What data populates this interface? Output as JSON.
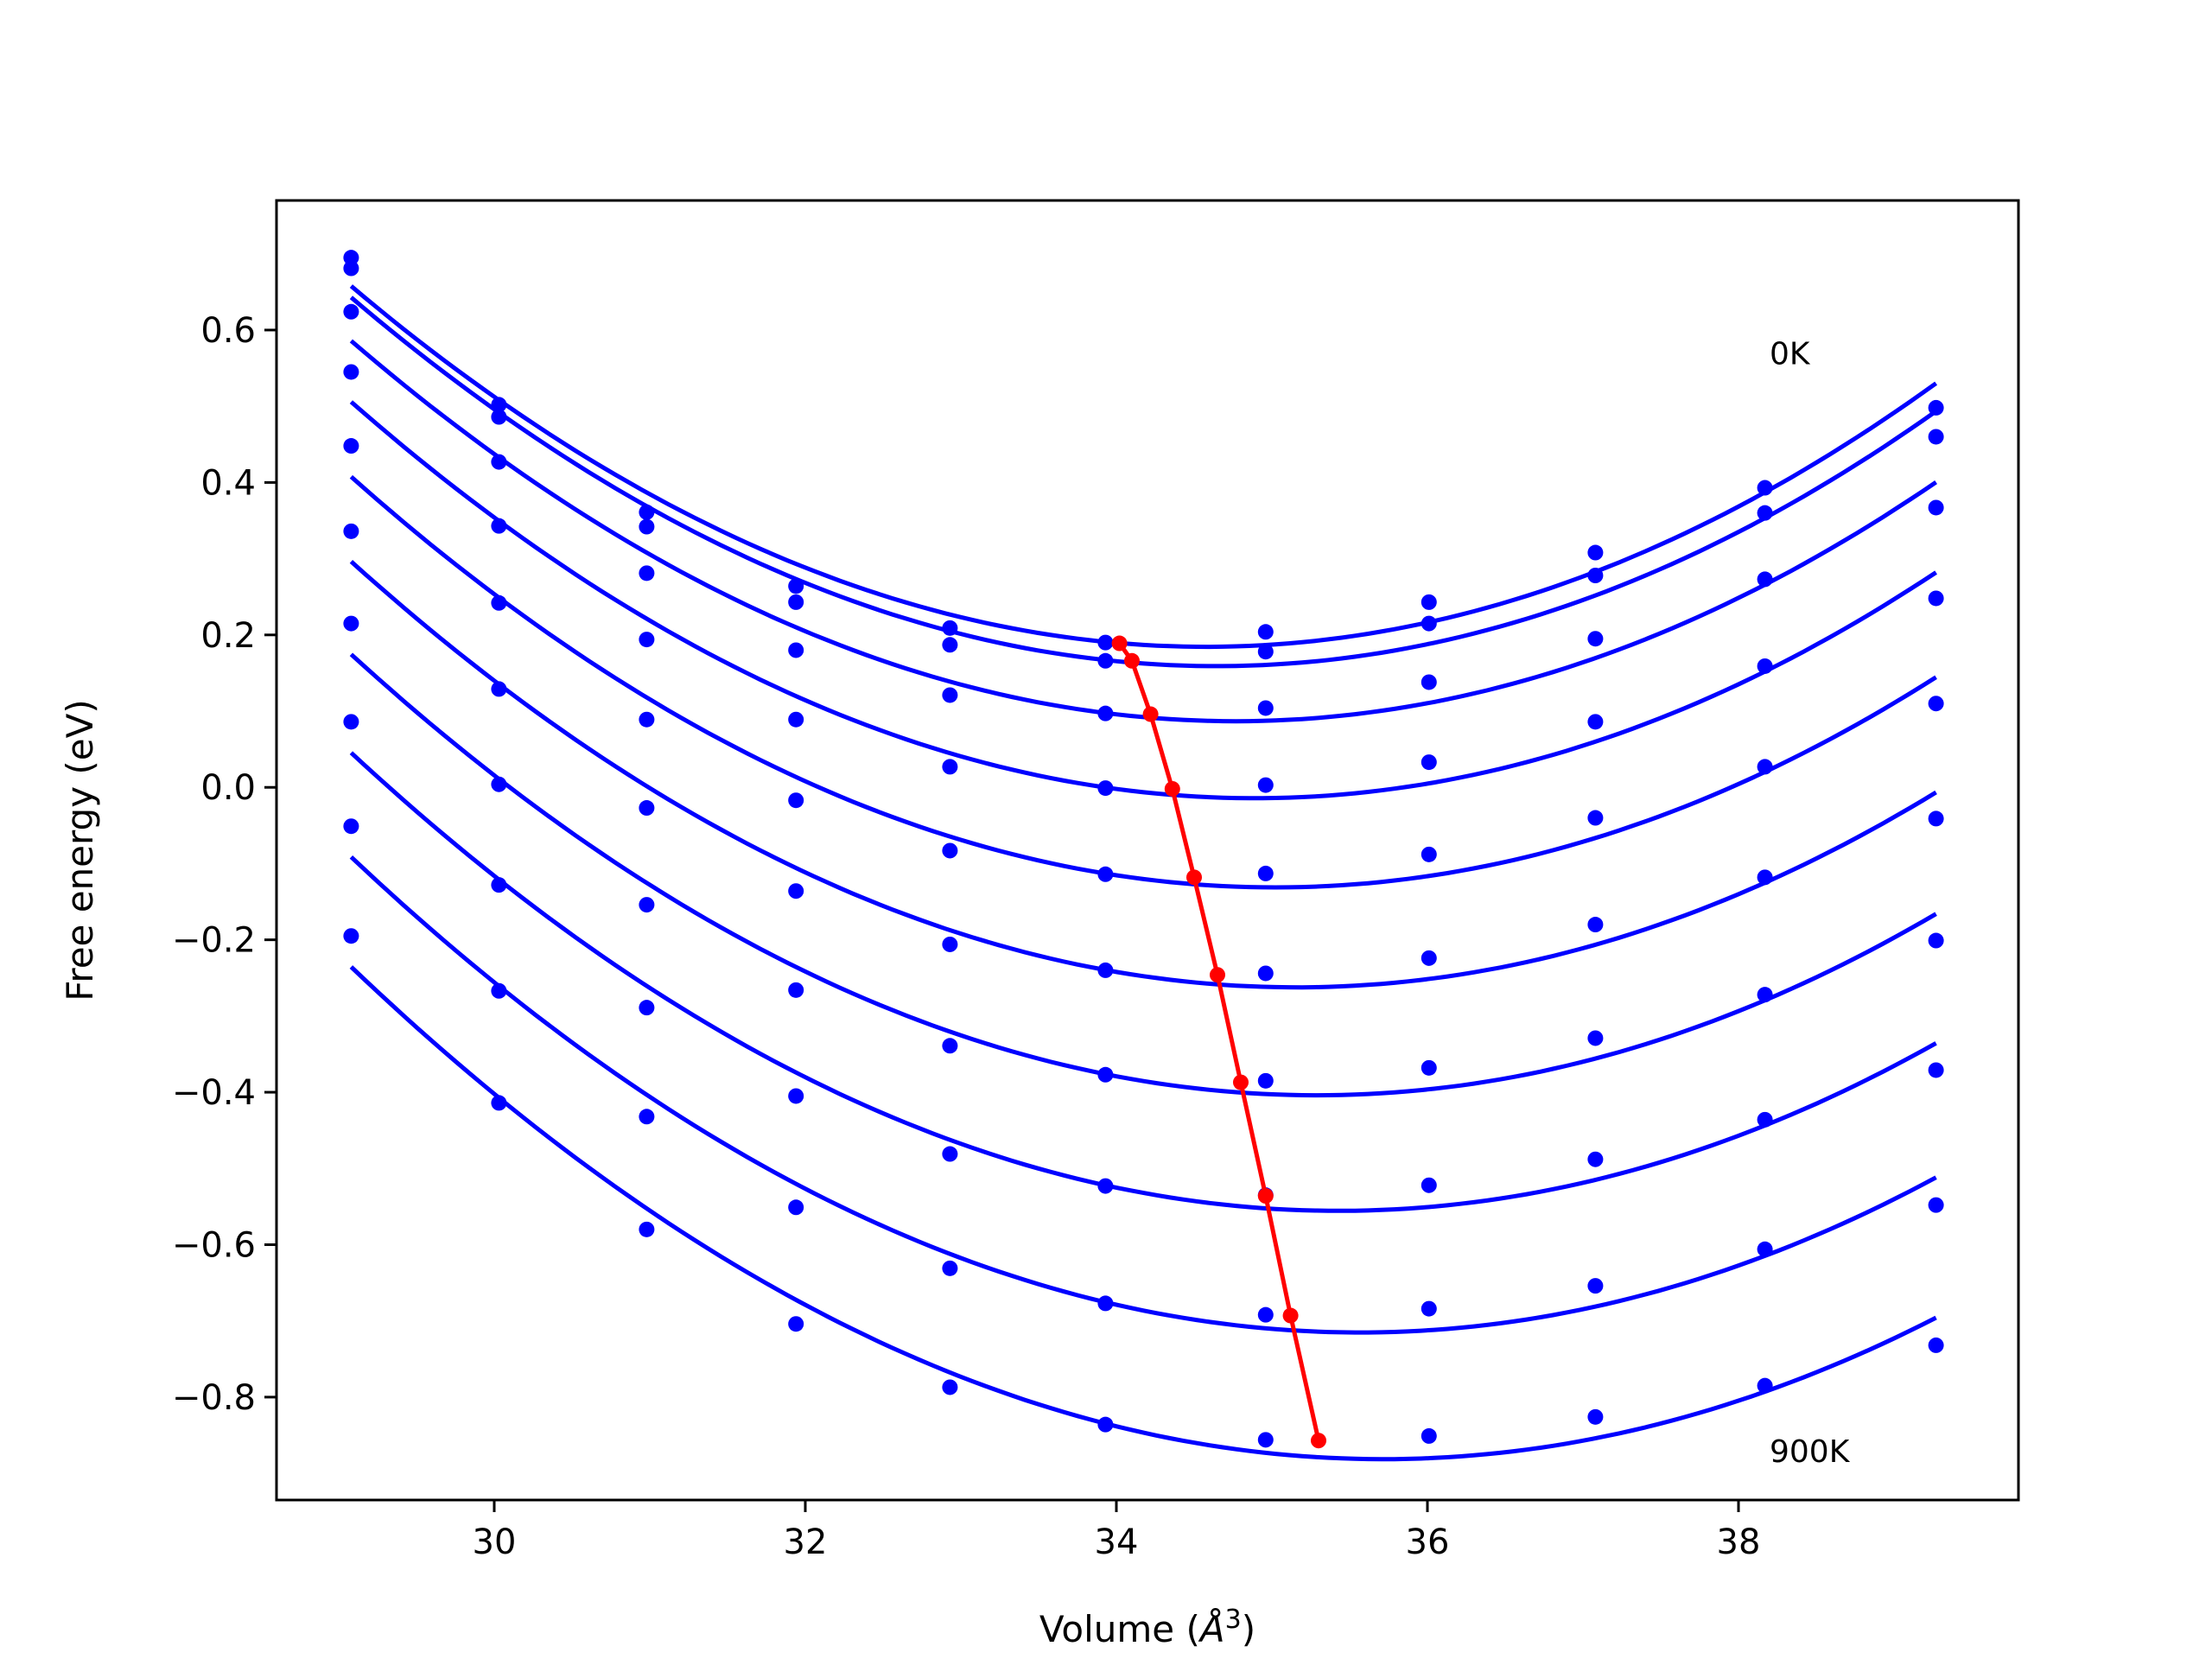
{
  "chart_data": {
    "type": "line",
    "xlabel_main": "Volume (",
    "xlabel_unit": "Å",
    "xlabel_exp": "3",
    "xlabel_close": ")",
    "ylabel": "Free energy (eV)",
    "xlim": [
      28.6,
      39.8
    ],
    "ylim": [
      -0.935,
      0.77
    ],
    "xticks": [
      {
        "value": 30,
        "label": "30"
      },
      {
        "value": 32,
        "label": "32"
      },
      {
        "value": 34,
        "label": "34"
      },
      {
        "value": 36,
        "label": "36"
      },
      {
        "value": 38,
        "label": "38"
      }
    ],
    "yticks": [
      {
        "value": 0.6,
        "label": "0.6"
      },
      {
        "value": 0.4,
        "label": "0.4"
      },
      {
        "value": 0.2,
        "label": "0.2"
      },
      {
        "value": 0.0,
        "label": "0.0"
      },
      {
        "value": -0.2,
        "label": "−0.2"
      },
      {
        "value": -0.4,
        "label": "−0.4"
      },
      {
        "value": -0.6,
        "label": "−0.6"
      },
      {
        "value": -0.8,
        "label": "−0.8"
      }
    ],
    "x": [
      29.08,
      30.03,
      30.98,
      31.94,
      32.93,
      33.93,
      34.96,
      36.01,
      37.08,
      38.17,
      39.27
    ],
    "series": [
      {
        "values": [
          0.695,
          0.502,
          0.361,
          0.264,
          0.209,
          0.19,
          0.204,
          0.243,
          0.308,
          0.393,
          0.498
        ]
      },
      {
        "values": [
          0.681,
          0.486,
          0.342,
          0.243,
          0.187,
          0.166,
          0.178,
          0.215,
          0.278,
          0.36,
          0.46
        ]
      },
      {
        "values": [
          0.624,
          0.427,
          0.281,
          0.18,
          0.121,
          0.097,
          0.104,
          0.138,
          0.195,
          0.273,
          0.367
        ]
      },
      {
        "values": [
          0.545,
          0.343,
          0.194,
          0.089,
          0.027,
          -0.001,
          0.003,
          0.033,
          0.086,
          0.159,
          0.248
        ]
      },
      {
        "values": [
          0.448,
          0.242,
          0.089,
          -0.017,
          -0.083,
          -0.114,
          -0.113,
          -0.088,
          -0.04,
          0.027,
          0.11
        ]
      },
      {
        "values": [
          0.336,
          0.129,
          -0.027,
          -0.136,
          -0.206,
          -0.24,
          -0.244,
          -0.224,
          -0.18,
          -0.118,
          -0.041
        ]
      },
      {
        "values": [
          0.215,
          0.004,
          -0.154,
          -0.266,
          -0.339,
          -0.377,
          -0.385,
          -0.368,
          -0.329,
          -0.272,
          -0.201
        ]
      },
      {
        "values": [
          0.086,
          -0.128,
          -0.289,
          -0.405,
          -0.481,
          -0.523,
          -0.535,
          -0.522,
          -0.488,
          -0.436,
          -0.371
        ]
      },
      {
        "values": [
          -0.051,
          -0.267,
          -0.432,
          -0.551,
          -0.631,
          -0.677,
          -0.692,
          -0.684,
          -0.654,
          -0.606,
          -0.548
        ]
      },
      {
        "values": [
          -0.195,
          -0.414,
          -0.58,
          -0.704,
          -0.787,
          -0.836,
          -0.856,
          -0.851,
          -0.826,
          -0.785,
          -0.732
        ]
      }
    ],
    "minima": {
      "x": [
        34.02,
        34.1,
        34.22,
        34.36,
        34.5,
        34.65,
        34.8,
        34.96,
        35.12,
        35.3
      ],
      "y": [
        0.189,
        0.166,
        0.096,
        -0.002,
        -0.118,
        -0.246,
        -0.387,
        -0.536,
        -0.693,
        -0.857
      ]
    },
    "annotations": [
      {
        "text": "0K",
        "x": 38.2,
        "y": 0.555
      },
      {
        "text": "900K",
        "x": 38.2,
        "y": -0.885
      }
    ],
    "series_color": "#0000ff",
    "minima_color": "#ff0000",
    "grid": false
  }
}
